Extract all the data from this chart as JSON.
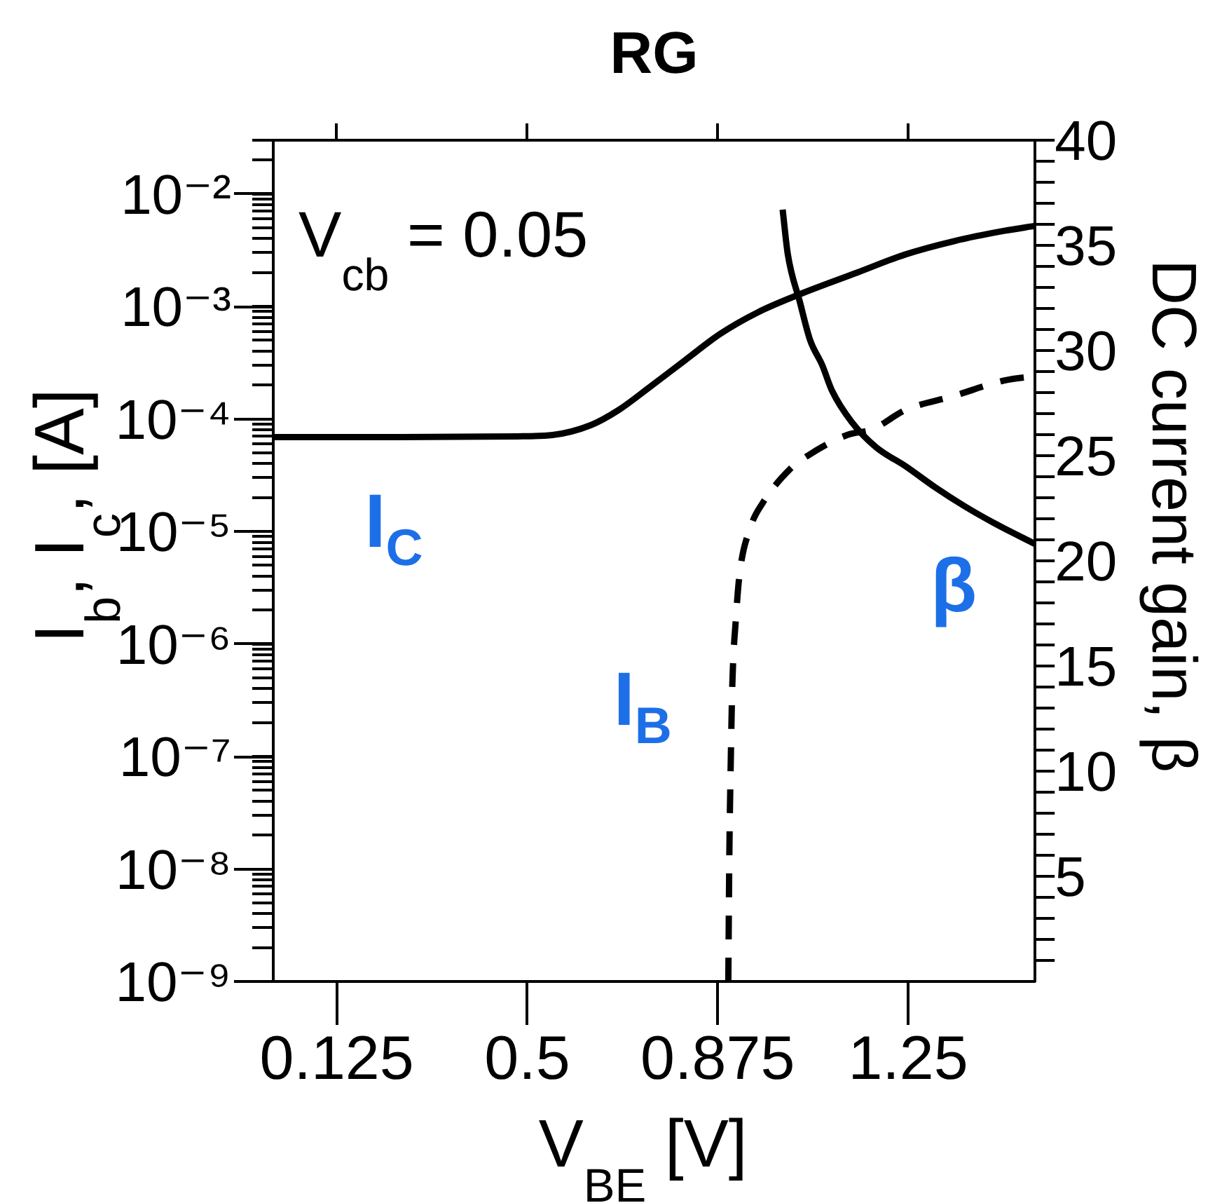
{
  "chart_data": {
    "type": "line",
    "title": "RG",
    "xlabel": "V$_{BE}$ [V]",
    "ylabel": "I$_{b}$, I$_{c}$, [A]",
    "y2label": "DC current gain, β",
    "annotations": [
      "V$_{cb}$ = 0.05"
    ],
    "series": [
      {
        "name": "I$_{C}$",
        "color": "#000000",
        "line_style": "solid",
        "x": [
          0,
          0.25,
          0.48,
          0.55,
          0.625,
          0.68,
          0.74,
          0.81,
          0.88,
          0.955,
          1.04,
          1.15,
          1.245,
          1.34,
          1.44,
          1.5
        ],
        "values": [
          6.9e-05,
          6.9e-05,
          7e-05,
          7.2e-05,
          8.8e-05,
          0.00012,
          0.00019,
          0.00033,
          0.00057,
          0.00089,
          0.0013,
          0.002,
          0.0029,
          0.0038,
          0.0047,
          0.0052
        ]
      },
      {
        "name": "I$_{B}$",
        "color": "#000000",
        "line_style": "dashed",
        "x": [
          0.896,
          0.898,
          0.901,
          0.904,
          0.911,
          0.918,
          0.94,
          0.964,
          1.018,
          1.052,
          1.13,
          1.18,
          1.245,
          1.34,
          1.44,
          1.5
        ],
        "values": [
          1e-09,
          1.3e-08,
          1e-07,
          4.5e-07,
          1.7e-06,
          4.1e-06,
          1.1e-05,
          1.8e-05,
          3.6e-05,
          4.7e-05,
          7.2e-05,
          8.1e-05,
          0.00012,
          0.00016,
          0.00022,
          0.00024
        ]
      },
      {
        "name": "β",
        "color": "#000000",
        "line_style": "solid",
        "axis": "y2",
        "x": [
          1.003,
          1.013,
          1.037,
          1.057,
          1.081,
          1.1,
          1.139,
          1.187,
          1.245,
          1.303,
          1.361,
          1.419,
          1.5
        ],
        "values": [
          36.7,
          34.6,
          32.3,
          30.5,
          29.3,
          28.1,
          26.6,
          25.4,
          24.5,
          23.5,
          22.6,
          21.8,
          20.8
        ]
      }
    ],
    "xlim": [
      0,
      1.5
    ],
    "xticks": [
      0.125,
      0.5,
      0.875,
      1.25
    ],
    "ylim": [
      1e-09,
      0.03
    ],
    "yticks": [
      {
        "value": 1e-09,
        "label": "10⁻⁹"
      },
      {
        "value": 2e-09,
        "label": null
      },
      {
        "value": 3e-09,
        "label": null
      },
      {
        "value": 4e-09,
        "label": null
      },
      {
        "value": 5e-09,
        "label": null
      },
      {
        "value": 6e-09,
        "label": null
      },
      {
        "value": 7e-09,
        "label": null
      },
      {
        "value": 8e-09,
        "label": null
      },
      {
        "value": 9e-09,
        "label": null
      },
      {
        "value": 1e-08,
        "label": "10⁻⁸"
      },
      {
        "value": 2e-08,
        "label": null
      },
      {
        "value": 3e-08,
        "label": null
      },
      {
        "value": 4e-08,
        "label": null
      },
      {
        "value": 5e-08,
        "label": null
      },
      {
        "value": 6e-08,
        "label": null
      },
      {
        "value": 7e-08,
        "label": null
      },
      {
        "value": 8e-08,
        "label": null
      },
      {
        "value": 9e-08,
        "label": null
      },
      {
        "value": 1e-07,
        "label": "10⁻⁷"
      },
      {
        "value": 2e-07,
        "label": null
      },
      {
        "value": 3e-07,
        "label": null
      },
      {
        "value": 4e-07,
        "label": null
      },
      {
        "value": 5e-07,
        "label": null
      },
      {
        "value": 6e-07,
        "label": null
      },
      {
        "value": 7e-07,
        "label": null
      },
      {
        "value": 8e-07,
        "label": null
      },
      {
        "value": 9e-07,
        "label": null
      },
      {
        "value": 1e-06,
        "label": "10⁻⁶"
      },
      {
        "value": 2e-06,
        "label": null
      },
      {
        "value": 3e-06,
        "label": null
      },
      {
        "value": 4e-06,
        "label": null
      },
      {
        "value": 5e-06,
        "label": null
      },
      {
        "value": 6e-06,
        "label": null
      },
      {
        "value": 7e-06,
        "label": null
      },
      {
        "value": 8e-06,
        "label": null
      },
      {
        "value": 9e-06,
        "label": null
      },
      {
        "value": 1e-05,
        "label": "10⁻⁵"
      },
      {
        "value": 2e-05,
        "label": null
      },
      {
        "value": 3e-05,
        "label": null
      },
      {
        "value": 4e-05,
        "label": null
      },
      {
        "value": 5e-05,
        "label": null
      },
      {
        "value": 6e-05,
        "label": null
      },
      {
        "value": 7e-05,
        "label": null
      },
      {
        "value": 8e-05,
        "label": null
      },
      {
        "value": 9e-05,
        "label": null
      },
      {
        "value": 0.0001,
        "label": "10⁻⁴"
      },
      {
        "value": 0.0002,
        "label": null
      },
      {
        "value": 0.0003,
        "label": null
      },
      {
        "value": 0.0004,
        "label": null
      },
      {
        "value": 0.0005,
        "label": null
      },
      {
        "value": 0.0006,
        "label": null
      },
      {
        "value": 0.0007,
        "label": null
      },
      {
        "value": 0.0008,
        "label": null
      },
      {
        "value": 0.0009,
        "label": null
      },
      {
        "value": 0.001,
        "label": "10⁻³"
      },
      {
        "value": 0.002,
        "label": null
      },
      {
        "value": 0.003,
        "label": null
      },
      {
        "value": 0.004,
        "label": null
      },
      {
        "value": 0.005,
        "label": null
      },
      {
        "value": 0.006,
        "label": null
      },
      {
        "value": 0.007,
        "label": null
      },
      {
        "value": 0.008,
        "label": null
      },
      {
        "value": 0.009,
        "label": null
      },
      {
        "value": 0.01,
        "label": "10⁻²"
      },
      {
        "value": 0.02,
        "label": null
      },
      {
        "value": 0.03,
        "label": null
      }
    ],
    "y2lim": [
      0,
      40
    ],
    "y2ticks": [
      {
        "value": 1,
        "label": null
      },
      {
        "value": 2,
        "label": null
      },
      {
        "value": 3,
        "label": null
      },
      {
        "value": 4,
        "label": null
      },
      5,
      {
        "value": 6,
        "label": null
      },
      {
        "value": 7,
        "label": null
      },
      {
        "value": 8,
        "label": null
      },
      {
        "value": 9,
        "label": null
      },
      10,
      {
        "value": 11,
        "label": null
      },
      {
        "value": 12,
        "label": null
      },
      {
        "value": 13,
        "label": null
      },
      {
        "value": 14,
        "label": null
      },
      15,
      {
        "value": 16,
        "label": null
      },
      {
        "value": 17,
        "label": null
      },
      {
        "value": 18,
        "label": null
      },
      {
        "value": 19,
        "label": null
      },
      20,
      {
        "value": 21,
        "label": null
      },
      {
        "value": 22,
        "label": null
      },
      {
        "value": 23,
        "label": null
      },
      {
        "value": 24,
        "label": null
      },
      25,
      {
        "value": 26,
        "label": null
      },
      {
        "value": 27,
        "label": null
      },
      {
        "value": 28,
        "label": null
      },
      {
        "value": 29,
        "label": null
      },
      30,
      {
        "value": 31,
        "label": null
      },
      {
        "value": 32,
        "label": null
      },
      {
        "value": 33,
        "label": null
      },
      {
        "value": 34,
        "label": null
      },
      35,
      {
        "value": 36,
        "label": null
      },
      {
        "value": 37,
        "label": null
      },
      {
        "value": 38,
        "label": null
      },
      {
        "value": 39,
        "label": null
      },
      40
    ],
    "log": "y",
    "marker": "none"
  }
}
